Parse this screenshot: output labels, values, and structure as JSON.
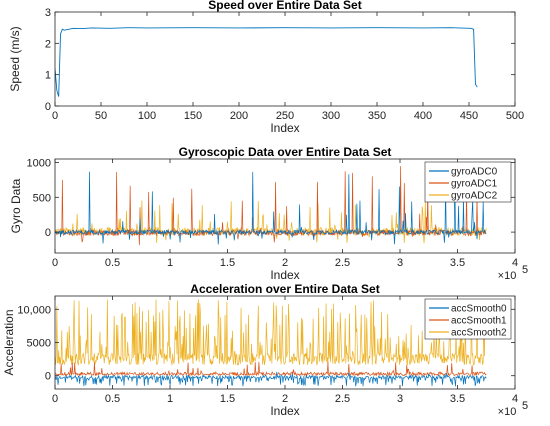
{
  "colors": {
    "c0": "#0072BD",
    "c1": "#D95319",
    "c2": "#EDB120"
  },
  "chart_data": [
    {
      "type": "line",
      "title": "Speed over Entire Data Set",
      "xlabel": "Index",
      "ylabel": "Speed (m/s)",
      "xlim": [
        0,
        500
      ],
      "ylim": [
        0,
        3
      ],
      "xticks": [
        0,
        50,
        100,
        150,
        200,
        250,
        300,
        350,
        400,
        450,
        500
      ],
      "xtick_labels": [
        "0",
        "50",
        "100",
        "150",
        "200",
        "250",
        "300",
        "350",
        "400",
        "450",
        "500"
      ],
      "yticks": [
        0,
        1,
        2,
        3
      ],
      "ytick_labels": [
        "0",
        "1",
        "2",
        "3"
      ],
      "grid": false,
      "legend": "none",
      "series": [
        {
          "points": [
            [
              0,
              1.2
            ],
            [
              2,
              0.5
            ],
            [
              4,
              0.3
            ],
            [
              6,
              2.3
            ],
            [
              8,
              2.45
            ],
            [
              10,
              2.42
            ],
            [
              20,
              2.48
            ],
            [
              30,
              2.47
            ],
            [
              40,
              2.49
            ],
            [
              60,
              2.48
            ],
            [
              80,
              2.5
            ],
            [
              100,
              2.49
            ],
            [
              150,
              2.5
            ],
            [
              200,
              2.49
            ],
            [
              250,
              2.5
            ],
            [
              300,
              2.49
            ],
            [
              350,
              2.5
            ],
            [
              400,
              2.49
            ],
            [
              430,
              2.5
            ],
            [
              452,
              2.48
            ],
            [
              455,
              2.45
            ],
            [
              457,
              0.7
            ],
            [
              459,
              0.6
            ]
          ]
        }
      ]
    },
    {
      "type": "line",
      "title": "Gyroscopic Data over Entire Data Set",
      "xlabel": "Index",
      "ylabel": "Gyro Data",
      "xlim": [
        0,
        400000
      ],
      "ylim": [
        -300,
        1050
      ],
      "xticks": [
        0,
        50000,
        100000,
        150000,
        200000,
        250000,
        300000,
        350000,
        400000
      ],
      "xtick_labels": [
        "0",
        "0.5",
        "1",
        "1.5",
        "2",
        "2.5",
        "3",
        "3.5",
        "4"
      ],
      "yticks": [
        0,
        500,
        1000
      ],
      "ytick_labels": [
        "0",
        "500",
        "1000"
      ],
      "x_multiplier": "×10",
      "x_multiplier_exp": "5",
      "grid": false,
      "legend": "top-right",
      "series": [
        {
          "name": "gyroADC0",
          "color": "#0072BD"
        },
        {
          "name": "gyroADC1",
          "color": "#D95319"
        },
        {
          "name": "gyroADC2",
          "color": "#EDB120"
        }
      ]
    },
    {
      "type": "line",
      "title": "Acceleration over Entire Data Set",
      "xlabel": "Index",
      "ylabel": "Acceleration",
      "xlim": [
        0,
        400000
      ],
      "ylim": [
        -2000,
        12000
      ],
      "xticks": [
        0,
        50000,
        100000,
        150000,
        200000,
        250000,
        300000,
        350000,
        400000
      ],
      "xtick_labels": [
        "0",
        "0.5",
        "1",
        "1.5",
        "2",
        "2.5",
        "3",
        "3.5",
        "4"
      ],
      "yticks": [
        0,
        5000,
        10000
      ],
      "ytick_labels": [
        "0",
        "5000",
        "10,000"
      ],
      "x_multiplier": "×10",
      "x_multiplier_exp": "5",
      "grid": false,
      "legend": "top-right",
      "series": [
        {
          "name": "accSmooth0",
          "color": "#0072BD"
        },
        {
          "name": "accSmooth1",
          "color": "#D95319"
        },
        {
          "name": "accSmooth2",
          "color": "#EDB120"
        }
      ]
    }
  ]
}
